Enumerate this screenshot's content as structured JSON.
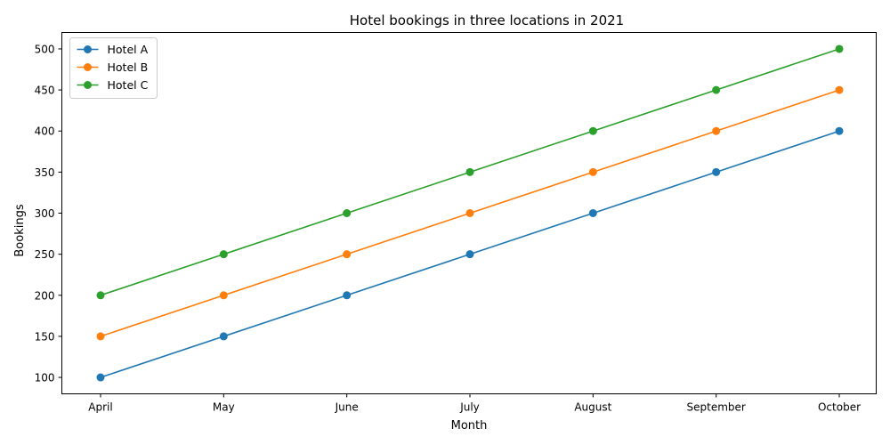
{
  "chart_data": {
    "type": "line",
    "title": "Hotel bookings in three locations in 2021",
    "xlabel": "Month",
    "ylabel": "Bookings",
    "categories": [
      "April",
      "May",
      "June",
      "July",
      "August",
      "September",
      "October"
    ],
    "ylim": [
      80,
      520
    ],
    "yticks": [
      100,
      150,
      200,
      250,
      300,
      350,
      400,
      450,
      500
    ],
    "grid": false,
    "legend_position": "top-left",
    "series": [
      {
        "name": "Hotel A",
        "color": "#1f77b4",
        "values": [
          100,
          150,
          200,
          250,
          300,
          350,
          400
        ]
      },
      {
        "name": "Hotel B",
        "color": "#ff7f0e",
        "values": [
          150,
          200,
          250,
          300,
          350,
          400,
          450
        ]
      },
      {
        "name": "Hotel C",
        "color": "#2ca02c",
        "values": [
          200,
          250,
          300,
          350,
          400,
          450,
          500
        ]
      }
    ]
  }
}
